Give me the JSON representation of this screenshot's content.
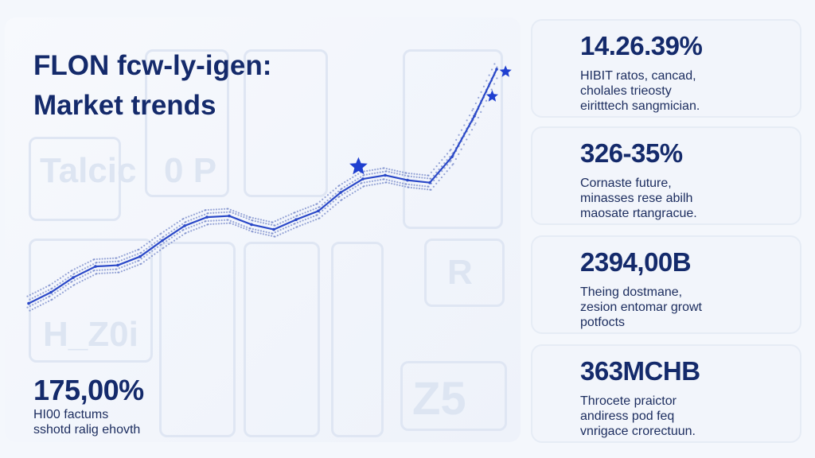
{
  "title": {
    "line1": "FLON fcw-ly-igen:",
    "line2": "Market trends"
  },
  "background_ghost_text": [
    "Talcic",
    "0 P",
    "H_Z0i",
    "R",
    "Z5"
  ],
  "main_stat": {
    "value": "175,00%",
    "desc": [
      "HI00 factums",
      "sshotd ralig ehovth"
    ]
  },
  "cards": [
    {
      "value": "14.26.39%",
      "desc": [
        "HIBIT ratos, cancad,",
        "cholales trieosty",
        "eiritttech sangmician."
      ]
    },
    {
      "value": "326-35%",
      "desc": [
        "Cornaste future,",
        "minasses rese abilh",
        "maosate rtangracue."
      ]
    },
    {
      "value": "2394,00B",
      "desc": [
        "Theing dostmane,",
        "zesion entomar growt",
        "potfocts"
      ]
    },
    {
      "value": "363MCHB",
      "desc": [
        "Throcete praictor",
        "andiress pod feq",
        "vnrigace crorectuun."
      ]
    }
  ],
  "chart_data": {
    "type": "line",
    "title": "",
    "xlabel": "",
    "ylabel": "",
    "x": [
      0,
      1,
      2,
      3,
      4,
      5,
      6,
      7,
      8,
      9,
      10,
      11,
      12,
      13,
      14,
      15,
      16,
      17,
      18,
      19,
      20,
      21
    ],
    "series": [
      {
        "values": [
          8,
          17,
          29,
          38,
          39,
          46,
          59,
          71,
          78,
          79,
          72,
          68,
          76,
          83,
          98,
          109,
          112,
          108,
          106,
          127,
          160,
          198
        ]
      }
    ],
    "markers": [
      {
        "x": 14.8,
        "y": 119,
        "symbol": "star"
      },
      {
        "x": 20.8,
        "y": 176,
        "symbol": "star"
      },
      {
        "x": 21.4,
        "y": 196,
        "symbol": "star"
      }
    ],
    "ylim": [
      0,
      200
    ],
    "grid": false,
    "colors": {
      "line": "#2b49c8",
      "dots": "#4a63b8",
      "marker": "#1f3fd0",
      "text": "#142a6b"
    }
  }
}
